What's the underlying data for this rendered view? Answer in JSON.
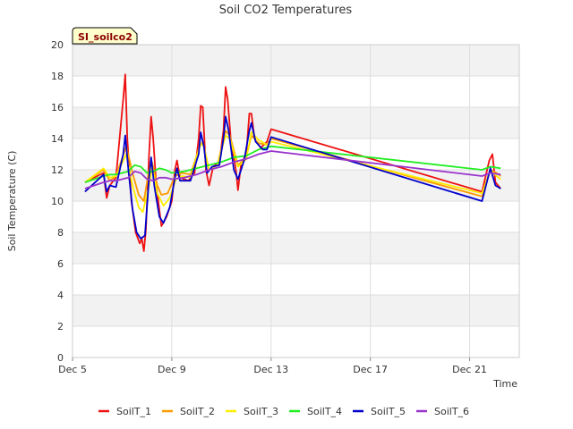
{
  "chart_data": {
    "type": "line",
    "title": "Soil CO2 Temperatures",
    "site_label": "SI_soilco2",
    "xlabel": "Time",
    "ylabel": "Soil Temperature (C)",
    "xlim": [
      "2022-12-05",
      "2022-12-23"
    ],
    "ylim": [
      0,
      20
    ],
    "yticks": [
      0,
      2,
      4,
      6,
      8,
      10,
      12,
      14,
      16,
      18,
      20
    ],
    "xticks": [
      {
        "date": "2022-12-05",
        "label": "Dec 5"
      },
      {
        "date": "2022-12-09",
        "label": "Dec 9"
      },
      {
        "date": "2022-12-13",
        "label": "Dec 13"
      },
      {
        "date": "2022-12-17",
        "label": "Dec 17"
      },
      {
        "date": "2022-12-21",
        "label": "Dec 21"
      }
    ],
    "grid": true,
    "legend_position": "bottom",
    "series": [
      {
        "name": "SoilT_1",
        "color": "#ee1111",
        "points": [
          [
            "2022-12-05 12:00",
            11.2
          ],
          [
            "2022-12-06 06:00",
            11.8
          ],
          [
            "2022-12-06 09:00",
            10.2
          ],
          [
            "2022-12-06 12:00",
            11.0
          ],
          [
            "2022-12-06 18:00",
            11.5
          ],
          [
            "2022-12-07 01:00",
            16.5
          ],
          [
            "2022-12-07 03:00",
            18.1
          ],
          [
            "2022-12-07 05:00",
            14.0
          ],
          [
            "2022-12-07 09:00",
            10.0
          ],
          [
            "2022-12-07 13:00",
            8.0
          ],
          [
            "2022-12-07 17:00",
            7.3
          ],
          [
            "2022-12-07 19:00",
            7.6
          ],
          [
            "2022-12-07 21:00",
            6.8
          ],
          [
            "2022-12-07 23:00",
            8.2
          ],
          [
            "2022-12-08 02:00",
            13.0
          ],
          [
            "2022-12-08 04:00",
            15.4
          ],
          [
            "2022-12-08 06:00",
            14.0
          ],
          [
            "2022-12-08 09:00",
            11.0
          ],
          [
            "2022-12-08 14:00",
            8.4
          ],
          [
            "2022-12-08 19:00",
            9.0
          ],
          [
            "2022-12-09 00:00",
            10.0
          ],
          [
            "2022-12-09 03:00",
            12.0
          ],
          [
            "2022-12-09 05:00",
            12.6
          ],
          [
            "2022-12-09 08:00",
            11.5
          ],
          [
            "2022-12-09 16:00",
            11.3
          ],
          [
            "2022-12-09 22:00",
            11.8
          ],
          [
            "2022-12-10 02:00",
            14.0
          ],
          [
            "2022-12-10 04:00",
            16.1
          ],
          [
            "2022-12-10 06:00",
            16.0
          ],
          [
            "2022-12-10 09:00",
            12.0
          ],
          [
            "2022-12-10 12:00",
            11.0
          ],
          [
            "2022-12-10 16:00",
            12.2
          ],
          [
            "2022-12-10 22:00",
            12.5
          ],
          [
            "2022-12-11 02:00",
            14.5
          ],
          [
            "2022-12-11 04:00",
            17.3
          ],
          [
            "2022-12-11 06:00",
            16.5
          ],
          [
            "2022-12-11 09:00",
            14.0
          ],
          [
            "2022-12-11 14:00",
            12.0
          ],
          [
            "2022-12-11 16:00",
            10.7
          ],
          [
            "2022-12-11 19:00",
            12.4
          ],
          [
            "2022-12-12 00:00",
            13.0
          ],
          [
            "2022-12-12 03:00",
            15.6
          ],
          [
            "2022-12-12 05:00",
            15.6
          ],
          [
            "2022-12-12 08:00",
            14.0
          ],
          [
            "2022-12-12 14:00",
            13.4
          ],
          [
            "2022-12-12 20:00",
            13.8
          ],
          [
            "2022-12-13 00:00",
            14.6
          ],
          [
            "2022-12-21 12:00",
            10.6
          ],
          [
            "2022-12-21 19:00",
            12.6
          ],
          [
            "2022-12-21 22:00",
            13.0
          ],
          [
            "2022-12-22 01:00",
            11.2
          ],
          [
            "2022-12-22 06:00",
            10.8
          ]
        ]
      },
      {
        "name": "SoilT_2",
        "color": "#ff9900",
        "points": [
          [
            "2022-12-05 12:00",
            11.2
          ],
          [
            "2022-12-06 06:00",
            12.0
          ],
          [
            "2022-12-06 12:00",
            11.3
          ],
          [
            "2022-12-06 18:00",
            11.6
          ],
          [
            "2022-12-07 04:00",
            13.5
          ],
          [
            "2022-12-07 10:00",
            11.8
          ],
          [
            "2022-12-07 16:00",
            10.4
          ],
          [
            "2022-12-07 21:00",
            10.0
          ],
          [
            "2022-12-08 02:00",
            12.0
          ],
          [
            "2022-12-08 05:00",
            12.5
          ],
          [
            "2022-12-08 10:00",
            11.0
          ],
          [
            "2022-12-08 14:00",
            10.4
          ],
          [
            "2022-12-08 20:00",
            10.5
          ],
          [
            "2022-12-09 03:00",
            11.6
          ],
          [
            "2022-12-09 10:00",
            11.8
          ],
          [
            "2022-12-09 18:00",
            11.7
          ],
          [
            "2022-12-10 03:00",
            13.5
          ],
          [
            "2022-12-10 06:00",
            13.8
          ],
          [
            "2022-12-10 12:00",
            12.0
          ],
          [
            "2022-12-10 20:00",
            12.3
          ],
          [
            "2022-12-11 04:00",
            14.5
          ],
          [
            "2022-12-11 08:00",
            14.2
          ],
          [
            "2022-12-11 16:00",
            12.3
          ],
          [
            "2022-12-12 00:00",
            12.8
          ],
          [
            "2022-12-12 05:00",
            14.2
          ],
          [
            "2022-12-12 12:00",
            13.7
          ],
          [
            "2022-12-12 20:00",
            13.6
          ],
          [
            "2022-12-13 00:00",
            14.0
          ],
          [
            "2022-12-21 12:00",
            10.3
          ],
          [
            "2022-12-21 20:00",
            12.0
          ],
          [
            "2022-12-22 02:00",
            11.8
          ],
          [
            "2022-12-22 06:00",
            11.6
          ]
        ]
      },
      {
        "name": "SoilT_3",
        "color": "#ffee00",
        "points": [
          [
            "2022-12-05 12:00",
            11.2
          ],
          [
            "2022-12-06 06:00",
            12.1
          ],
          [
            "2022-12-06 12:00",
            11.5
          ],
          [
            "2022-12-06 18:00",
            11.6
          ],
          [
            "2022-12-07 04:00",
            13.0
          ],
          [
            "2022-12-07 10:00",
            11.0
          ],
          [
            "2022-12-07 16:00",
            9.6
          ],
          [
            "2022-12-07 20:00",
            9.3
          ],
          [
            "2022-12-08 02:00",
            11.0
          ],
          [
            "2022-12-08 05:00",
            12.2
          ],
          [
            "2022-12-08 10:00",
            10.5
          ],
          [
            "2022-12-08 16:00",
            9.7
          ],
          [
            "2022-12-08 22:00",
            10.2
          ],
          [
            "2022-12-09 04:00",
            11.4
          ],
          [
            "2022-12-09 10:00",
            11.6
          ],
          [
            "2022-12-09 18:00",
            11.5
          ],
          [
            "2022-12-10 03:00",
            13.5
          ],
          [
            "2022-12-10 06:00",
            13.7
          ],
          [
            "2022-12-10 12:00",
            12.0
          ],
          [
            "2022-12-10 20:00",
            12.3
          ],
          [
            "2022-12-11 04:00",
            14.2
          ],
          [
            "2022-12-11 08:00",
            14.0
          ],
          [
            "2022-12-11 16:00",
            12.2
          ],
          [
            "2022-12-12 00:00",
            12.7
          ],
          [
            "2022-12-12 05:00",
            14.4
          ],
          [
            "2022-12-12 12:00",
            13.9
          ],
          [
            "2022-12-12 20:00",
            13.6
          ],
          [
            "2022-12-13 00:00",
            13.8
          ],
          [
            "2022-12-21 12:00",
            10.5
          ],
          [
            "2022-12-21 20:00",
            12.0
          ],
          [
            "2022-12-22 02:00",
            11.6
          ],
          [
            "2022-12-22 06:00",
            11.4
          ]
        ]
      },
      {
        "name": "SoilT_4",
        "color": "#22ee22",
        "points": [
          [
            "2022-12-05 12:00",
            11.2
          ],
          [
            "2022-12-06 06:00",
            11.6
          ],
          [
            "2022-12-06 12:00",
            11.7
          ],
          [
            "2022-12-06 18:00",
            11.7
          ],
          [
            "2022-12-07 06:00",
            11.9
          ],
          [
            "2022-12-07 12:00",
            12.3
          ],
          [
            "2022-12-07 18:00",
            12.2
          ],
          [
            "2022-12-08 00:00",
            11.8
          ],
          [
            "2022-12-08 06:00",
            11.9
          ],
          [
            "2022-12-08 12:00",
            12.1
          ],
          [
            "2022-12-08 18:00",
            12.0
          ],
          [
            "2022-12-09 00:00",
            11.8
          ],
          [
            "2022-12-09 12:00",
            11.9
          ],
          [
            "2022-12-10 00:00",
            12.1
          ],
          [
            "2022-12-10 12:00",
            12.3
          ],
          [
            "2022-12-11 00:00",
            12.5
          ],
          [
            "2022-12-11 12:00",
            12.8
          ],
          [
            "2022-12-12 00:00",
            12.9
          ],
          [
            "2022-12-12 12:00",
            13.3
          ],
          [
            "2022-12-13 00:00",
            13.5
          ],
          [
            "2022-12-21 12:00",
            12.0
          ],
          [
            "2022-12-21 20:00",
            12.2
          ],
          [
            "2022-12-22 06:00",
            12.1
          ]
        ]
      },
      {
        "name": "SoilT_5",
        "color": "#0000cc",
        "points": [
          [
            "2022-12-05 12:00",
            10.6
          ],
          [
            "2022-12-06 06:00",
            11.7
          ],
          [
            "2022-12-06 09:00",
            10.6
          ],
          [
            "2022-12-06 12:00",
            11.0
          ],
          [
            "2022-12-06 18:00",
            10.9
          ],
          [
            "2022-12-07 01:00",
            13.0
          ],
          [
            "2022-12-07 03:00",
            14.2
          ],
          [
            "2022-12-07 06:00",
            12.0
          ],
          [
            "2022-12-07 10:00",
            9.5
          ],
          [
            "2022-12-07 14:00",
            8.0
          ],
          [
            "2022-12-07 18:00",
            7.6
          ],
          [
            "2022-12-07 22:00",
            7.8
          ],
          [
            "2022-12-08 02:00",
            11.5
          ],
          [
            "2022-12-08 04:00",
            12.8
          ],
          [
            "2022-12-08 07:00",
            11.0
          ],
          [
            "2022-12-08 12:00",
            9.0
          ],
          [
            "2022-12-08 16:00",
            8.6
          ],
          [
            "2022-12-08 22:00",
            9.6
          ],
          [
            "2022-12-09 03:00",
            11.5
          ],
          [
            "2022-12-09 05:00",
            12.1
          ],
          [
            "2022-12-09 08:00",
            11.3
          ],
          [
            "2022-12-09 18:00",
            11.3
          ],
          [
            "2022-12-10 02:00",
            13.0
          ],
          [
            "2022-12-10 04:00",
            14.4
          ],
          [
            "2022-12-10 07:00",
            13.5
          ],
          [
            "2022-12-10 10:00",
            11.8
          ],
          [
            "2022-12-10 15:00",
            12.2
          ],
          [
            "2022-12-10 22:00",
            12.3
          ],
          [
            "2022-12-11 02:00",
            14.0
          ],
          [
            "2022-12-11 04:00",
            15.4
          ],
          [
            "2022-12-11 07:00",
            14.5
          ],
          [
            "2022-12-11 12:00",
            12.0
          ],
          [
            "2022-12-11 16:00",
            11.4
          ],
          [
            "2022-12-11 22:00",
            12.6
          ],
          [
            "2022-12-12 03:00",
            14.5
          ],
          [
            "2022-12-12 05:00",
            15.0
          ],
          [
            "2022-12-12 09:00",
            13.8
          ],
          [
            "2022-12-12 16:00",
            13.3
          ],
          [
            "2022-12-12 20:00",
            13.3
          ],
          [
            "2022-12-13 00:00",
            14.1
          ],
          [
            "2022-12-21 12:00",
            10.0
          ],
          [
            "2022-12-21 20:00",
            12.1
          ],
          [
            "2022-12-22 01:00",
            11.0
          ],
          [
            "2022-12-22 06:00",
            10.8
          ]
        ]
      },
      {
        "name": "SoilT_6",
        "color": "#9933cc",
        "points": [
          [
            "2022-12-05 12:00",
            10.8
          ],
          [
            "2022-12-06 06:00",
            11.2
          ],
          [
            "2022-12-06 12:00",
            11.3
          ],
          [
            "2022-12-06 18:00",
            11.3
          ],
          [
            "2022-12-07 06:00",
            11.5
          ],
          [
            "2022-12-07 12:00",
            11.9
          ],
          [
            "2022-12-07 18:00",
            11.8
          ],
          [
            "2022-12-08 00:00",
            11.4
          ],
          [
            "2022-12-08 06:00",
            11.3
          ],
          [
            "2022-12-08 12:00",
            11.5
          ],
          [
            "2022-12-08 18:00",
            11.5
          ],
          [
            "2022-12-09 00:00",
            11.4
          ],
          [
            "2022-12-09 12:00",
            11.5
          ],
          [
            "2022-12-10 00:00",
            11.7
          ],
          [
            "2022-12-10 12:00",
            12.0
          ],
          [
            "2022-12-11 00:00",
            12.2
          ],
          [
            "2022-12-11 12:00",
            12.5
          ],
          [
            "2022-12-12 00:00",
            12.7
          ],
          [
            "2022-12-12 12:00",
            13.0
          ],
          [
            "2022-12-13 00:00",
            13.2
          ],
          [
            "2022-12-21 12:00",
            11.6
          ],
          [
            "2022-12-21 20:00",
            11.8
          ],
          [
            "2022-12-22 06:00",
            11.7
          ]
        ]
      }
    ]
  }
}
